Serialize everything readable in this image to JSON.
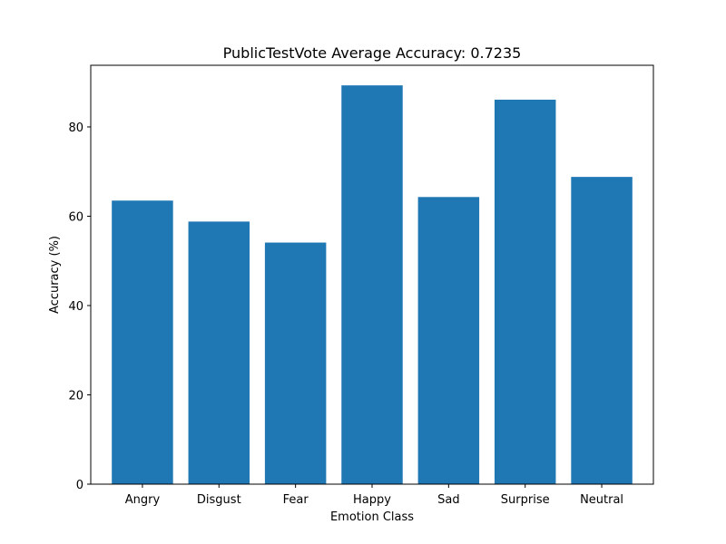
{
  "chart_data": {
    "type": "bar",
    "title": "PublicTestVote Average Accuracy: 0.7235",
    "xlabel": "Emotion Class",
    "ylabel": "Accuracy (%)",
    "categories": [
      "Angry",
      "Disgust",
      "Fear",
      "Happy",
      "Sad",
      "Surprise",
      "Neutral"
    ],
    "values": [
      63.5,
      58.8,
      54.1,
      89.3,
      64.3,
      86.1,
      68.8
    ],
    "yticks": [
      0,
      20,
      40,
      60,
      80
    ],
    "ylim": [
      0,
      93.8
    ],
    "bar_color": "#1f77b4",
    "grid": false,
    "legend": "none"
  }
}
